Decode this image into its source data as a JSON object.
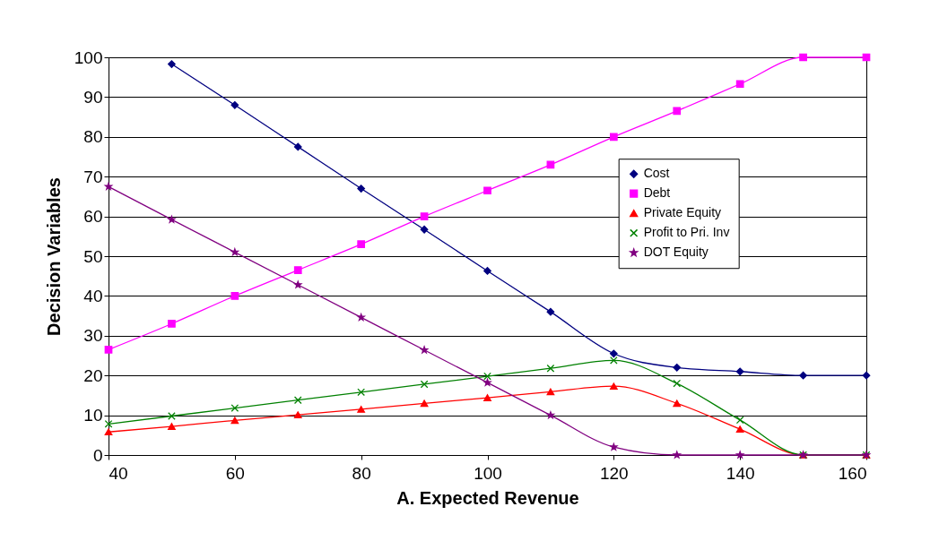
{
  "chart_data": {
    "type": "line",
    "xlabel": "A. Expected Revenue",
    "ylabel": "Decision Variables",
    "x": [
      40,
      50,
      60,
      70,
      80,
      90,
      100,
      110,
      120,
      130,
      140,
      150,
      160
    ],
    "series": [
      {
        "name": "Cost",
        "color": "#000080",
        "marker": "diamond",
        "values": [
          null,
          98.3,
          88,
          77.5,
          67,
          56.7,
          46.3,
          36,
          25.5,
          22,
          21,
          20,
          20
        ]
      },
      {
        "name": "Debt",
        "color": "#ff00ff",
        "marker": "square",
        "values": [
          26.5,
          33,
          40,
          46.5,
          53,
          60,
          66.5,
          73,
          80,
          86.5,
          93.3,
          100,
          100
        ]
      },
      {
        "name": "Private Equity",
        "color": "#ff0000",
        "marker": "triangle",
        "values": [
          5.8,
          7.2,
          8.7,
          10.1,
          11.5,
          13,
          14.4,
          15.9,
          17.3,
          13,
          6.5,
          0,
          0
        ]
      },
      {
        "name": "Profit to Pri. Inv",
        "color": "#008000",
        "marker": "cross",
        "values": [
          7.8,
          9.8,
          11.8,
          13.8,
          15.8,
          17.8,
          19.8,
          21.8,
          23.8,
          18,
          8.8,
          0,
          0
        ]
      },
      {
        "name": "DOT Equity",
        "color": "#800080",
        "marker": "star",
        "values": [
          67.5,
          59.2,
          51,
          42.8,
          34.6,
          26.4,
          18.2,
          10,
          2,
          0,
          0,
          0,
          0
        ]
      }
    ],
    "xlim": [
      40,
      160
    ],
    "xticks": [
      40,
      60,
      80,
      100,
      120,
      140,
      160
    ],
    "ylim": [
      0,
      100
    ],
    "yticks": [
      0,
      10,
      20,
      30,
      40,
      50,
      60,
      70,
      80,
      90,
      100
    ],
    "grid": "y",
    "legend": "right",
    "line_style": "solid"
  }
}
